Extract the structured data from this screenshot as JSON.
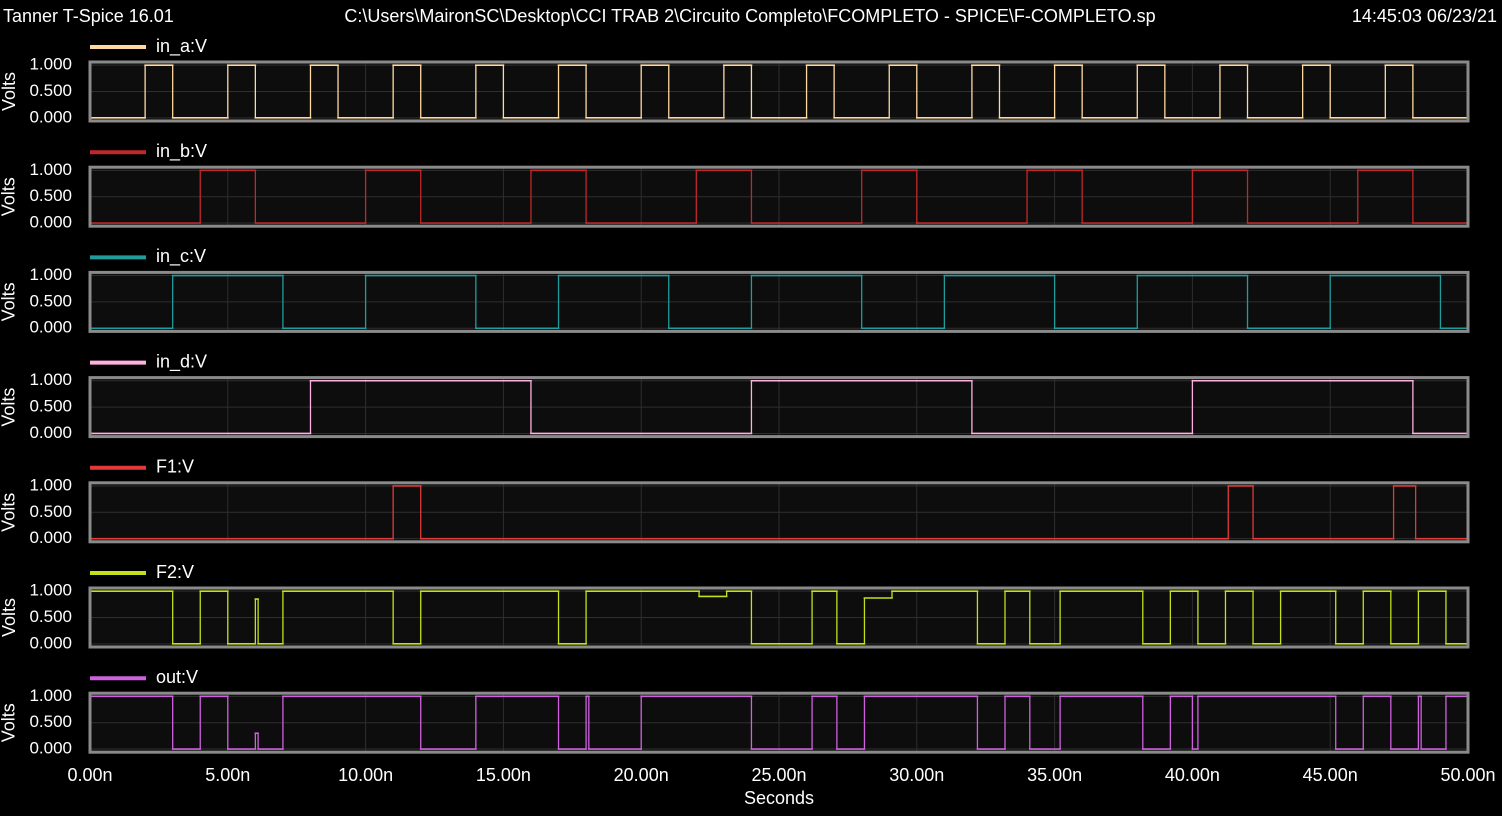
{
  "header": {
    "app": "Tanner T-Spice 16.01",
    "file": "C:\\Users\\MaironSC\\Desktop\\CCI TRAB 2\\Circuito Completo\\FCOMPLETO - SPICE\\F-COMPLETO.sp",
    "timestamp": "14:45:03 06/23/21"
  },
  "chart_data": [
    {
      "type": "line",
      "ylabel": "Volts",
      "drawstyle": "steps-post",
      "grid": true,
      "xlim": [
        0,
        50
      ],
      "ylim": [
        -0.06,
        1.06
      ],
      "yticks": [
        {
          "value": 0,
          "label": "0.000"
        },
        {
          "value": 0.5,
          "label": "0.500"
        },
        {
          "value": 1,
          "label": "1.000"
        }
      ],
      "series": [
        {
          "name": "in_a:V",
          "color": "#ffd9a0",
          "x": [
            0,
            2,
            3,
            5,
            6,
            8,
            9,
            11,
            12,
            14,
            15,
            17,
            18,
            20,
            21,
            23,
            24,
            26,
            27,
            29,
            30,
            32,
            33,
            35,
            36,
            38,
            39,
            41,
            42,
            44,
            45,
            47,
            48,
            50
          ],
          "values": [
            0,
            1,
            0,
            1,
            0,
            1,
            0,
            1,
            0,
            1,
            0,
            1,
            0,
            1,
            0,
            1,
            0,
            1,
            0,
            1,
            0,
            1,
            0,
            1,
            0,
            1,
            0,
            1,
            0,
            1,
            0,
            1,
            0,
            0
          ]
        }
      ]
    },
    {
      "type": "line",
      "ylabel": "Volts",
      "drawstyle": "steps-post",
      "grid": true,
      "xlim": [
        0,
        50
      ],
      "ylim": [
        -0.06,
        1.06
      ],
      "yticks": [
        {
          "value": 0,
          "label": "0.000"
        },
        {
          "value": 0.5,
          "label": "0.500"
        },
        {
          "value": 1,
          "label": "1.000"
        }
      ],
      "series": [
        {
          "name": "in_b:V",
          "color": "#c0282a",
          "x": [
            0,
            4,
            6,
            10,
            12,
            16,
            18,
            22,
            24,
            28,
            30,
            34,
            36,
            40,
            42,
            46,
            48,
            50
          ],
          "values": [
            0,
            1,
            0,
            1,
            0,
            1,
            0,
            1,
            0,
            1,
            0,
            1,
            0,
            1,
            0,
            1,
            0,
            0
          ]
        }
      ]
    },
    {
      "type": "line",
      "ylabel": "Volts",
      "drawstyle": "steps-post",
      "grid": true,
      "xlim": [
        0,
        50
      ],
      "ylim": [
        -0.06,
        1.06
      ],
      "yticks": [
        {
          "value": 0,
          "label": "0.000"
        },
        {
          "value": 0.5,
          "label": "0.500"
        },
        {
          "value": 1,
          "label": "1.000"
        }
      ],
      "series": [
        {
          "name": "in_c:V",
          "color": "#1f9d9d",
          "x": [
            0,
            3,
            7,
            10,
            14,
            17,
            21,
            24,
            28,
            31,
            35,
            38,
            42,
            45,
            49,
            50
          ],
          "values": [
            0,
            1,
            0,
            1,
            0,
            1,
            0,
            1,
            0,
            1,
            0,
            1,
            0,
            1,
            0,
            0
          ]
        }
      ]
    },
    {
      "type": "line",
      "ylabel": "Volts",
      "drawstyle": "steps-post",
      "grid": true,
      "xlim": [
        0,
        50
      ],
      "ylim": [
        -0.06,
        1.06
      ],
      "yticks": [
        {
          "value": 0,
          "label": "0.000"
        },
        {
          "value": 0.5,
          "label": "0.500"
        },
        {
          "value": 1,
          "label": "1.000"
        }
      ],
      "series": [
        {
          "name": "in_d:V",
          "color": "#ffb0e0",
          "x": [
            0,
            8,
            16,
            24,
            32,
            40,
            48,
            50
          ],
          "values": [
            0,
            1,
            0,
            1,
            0,
            1,
            0,
            0
          ]
        }
      ]
    },
    {
      "type": "line",
      "ylabel": "Volts",
      "drawstyle": "steps-post",
      "grid": true,
      "xlim": [
        0,
        50
      ],
      "ylim": [
        -0.06,
        1.06
      ],
      "yticks": [
        {
          "value": 0,
          "label": "0.000"
        },
        {
          "value": 0.5,
          "label": "0.500"
        },
        {
          "value": 1,
          "label": "1.000"
        }
      ],
      "series": [
        {
          "name": "F1:V",
          "color": "#e03a3a",
          "x": [
            0,
            11,
            12,
            41.3,
            42.2,
            47.3,
            48.1,
            50
          ],
          "values": [
            0,
            1,
            0,
            1,
            0,
            1,
            0,
            0
          ]
        }
      ]
    },
    {
      "type": "line",
      "ylabel": "Volts",
      "drawstyle": "steps-post",
      "grid": true,
      "xlim": [
        0,
        50
      ],
      "ylim": [
        -0.06,
        1.06
      ],
      "yticks": [
        {
          "value": 0,
          "label": "0.000"
        },
        {
          "value": 0.5,
          "label": "0.500"
        },
        {
          "value": 1,
          "label": "1.000"
        }
      ],
      "series": [
        {
          "name": "F2:V",
          "color": "#c5e01a",
          "x": [
            0,
            3,
            4,
            5,
            6,
            6.1,
            7,
            11,
            12,
            17,
            18,
            22.1,
            23.1,
            24,
            26.2,
            27.1,
            28.1,
            29.1,
            32.2,
            33.2,
            34.1,
            35.2,
            38.2,
            39.2,
            40.2,
            41.2,
            42.2,
            43.2,
            45.2,
            46.2,
            47.2,
            48.2,
            49.2,
            50
          ],
          "values": [
            1,
            0,
            1,
            0,
            0.85,
            0,
            1,
            0,
            1,
            0,
            1,
            0.9,
            1,
            0,
            1,
            0,
            0.87,
            1,
            0,
            1,
            0,
            1,
            0,
            1,
            0,
            1,
            0,
            1,
            0,
            1,
            0,
            1,
            0,
            0
          ]
        }
      ]
    },
    {
      "type": "line",
      "ylabel": "Volts",
      "xlabel": "Seconds",
      "drawstyle": "steps-post",
      "grid": true,
      "xlim": [
        0,
        50
      ],
      "ylim": [
        -0.06,
        1.06
      ],
      "yticks": [
        {
          "value": 0,
          "label": "0.000"
        },
        {
          "value": 0.5,
          "label": "0.500"
        },
        {
          "value": 1,
          "label": "1.000"
        }
      ],
      "xticks": [
        {
          "value": 0,
          "label": "0.00n"
        },
        {
          "value": 5,
          "label": "5.00n"
        },
        {
          "value": 10,
          "label": "10.00n"
        },
        {
          "value": 15,
          "label": "15.00n"
        },
        {
          "value": 20,
          "label": "20.00n"
        },
        {
          "value": 25,
          "label": "25.00n"
        },
        {
          "value": 30,
          "label": "30.00n"
        },
        {
          "value": 35,
          "label": "35.00n"
        },
        {
          "value": 40,
          "label": "40.00n"
        },
        {
          "value": 45,
          "label": "45.00n"
        },
        {
          "value": 50,
          "label": "50.00n"
        }
      ],
      "series": [
        {
          "name": "out:V",
          "color": "#d060e0",
          "x": [
            0,
            3,
            4,
            5,
            6,
            6.1,
            7,
            12,
            14,
            17,
            18,
            18.1,
            20,
            24,
            26.2,
            27.1,
            28.1,
            32.2,
            33.2,
            34.1,
            35.2,
            38.2,
            39.2,
            40.0,
            40.2,
            45.2,
            46.2,
            47.2,
            48.2,
            48.3,
            49.2,
            50
          ],
          "values": [
            1,
            0,
            1,
            0,
            0.3,
            0,
            1,
            0,
            1,
            0,
            1,
            0,
            1,
            0,
            1,
            0,
            1,
            0,
            1,
            0,
            1,
            0,
            1,
            0,
            1,
            0,
            1,
            0,
            1,
            0,
            1,
            1
          ]
        }
      ]
    }
  ]
}
